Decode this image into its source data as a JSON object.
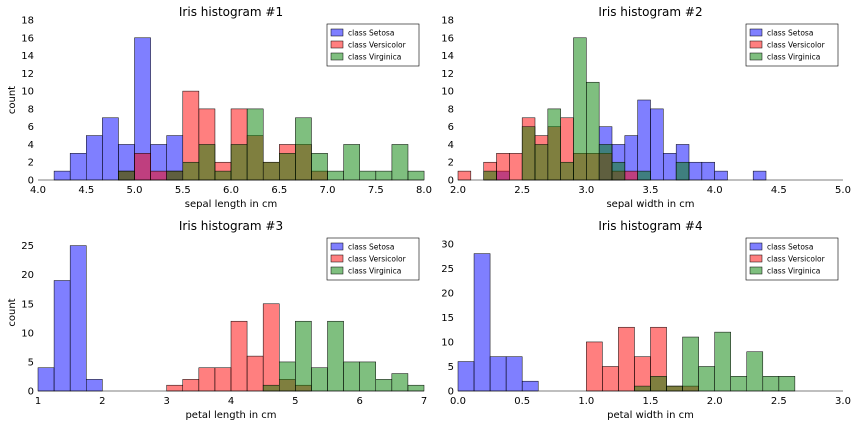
{
  "legend": {
    "entries": [
      "class Setosa",
      "class Versicolor",
      "class Virginica"
    ],
    "colors": [
      "#0000ff",
      "#ff0000",
      "#008000"
    ],
    "alpha": 0.5
  },
  "chart_data": [
    {
      "type": "histogram",
      "title": "Iris histogram #1",
      "xlabel": "sepal length in cm",
      "ylabel": "count",
      "xlim": [
        4.0,
        8.0
      ],
      "ylim": [
        0,
        18
      ],
      "xticks": [
        "4.0",
        "4.5",
        "5.0",
        "5.5",
        "6.0",
        "6.5",
        "7.0",
        "7.5",
        "8.0"
      ],
      "yticks": [
        "0",
        "2",
        "4",
        "6",
        "8",
        "10",
        "12",
        "14",
        "16",
        "18"
      ],
      "legend_position": "top-right",
      "grid": false,
      "bin_start": 4.0,
      "bin_width": 0.1667,
      "series": [
        {
          "name": "class Setosa",
          "values": [
            0,
            1,
            3,
            5,
            7,
            4,
            16,
            4,
            5,
            0,
            0,
            0,
            0,
            0,
            0,
            0,
            0,
            0,
            0,
            0,
            0,
            0,
            0,
            0
          ]
        },
        {
          "name": "class Versicolor",
          "values": [
            0,
            0,
            0,
            0,
            0,
            1,
            3,
            1,
            1,
            10,
            8,
            2,
            8,
            5,
            2,
            4,
            4,
            1,
            0,
            0,
            0,
            0,
            0,
            0
          ]
        },
        {
          "name": "class Virginica",
          "values": [
            0,
            0,
            0,
            0,
            0,
            1,
            0,
            0,
            1,
            2,
            4,
            1,
            4,
            8,
            2,
            3,
            7,
            3,
            1,
            4,
            1,
            1,
            4,
            1
          ]
        }
      ]
    },
    {
      "type": "histogram",
      "title": "Iris histogram #2",
      "xlabel": "sepal width in cm",
      "ylabel": "",
      "xlim": [
        2.0,
        5.0
      ],
      "ylim": [
        0,
        18
      ],
      "xticks": [
        "2.0",
        "2.5",
        "3.0",
        "3.5",
        "4.0",
        "4.5",
        "5.0"
      ],
      "yticks": [
        "0",
        "2",
        "4",
        "6",
        "8",
        "10",
        "12",
        "14",
        "16",
        "18"
      ],
      "legend_position": "top-right",
      "grid": false,
      "bin_start": 2.0,
      "bin_width": 0.1,
      "series": [
        {
          "name": "class Setosa",
          "values": [
            0,
            0,
            0,
            1,
            0,
            0,
            0,
            0,
            0,
            0,
            0,
            6,
            4,
            5,
            9,
            8,
            3,
            4,
            2,
            2,
            1,
            0,
            0,
            1,
            0,
            0,
            0,
            0,
            0,
            0
          ]
        },
        {
          "name": "class Versicolor",
          "values": [
            1,
            0,
            2,
            3,
            3,
            7,
            5,
            6,
            7,
            3,
            3,
            3,
            1,
            1,
            0,
            0,
            0,
            0,
            0,
            0,
            0,
            0,
            0,
            0,
            0,
            0,
            0,
            0,
            0,
            0
          ]
        },
        {
          "name": "class Virginica",
          "values": [
            0,
            0,
            1,
            0,
            0,
            6,
            4,
            8,
            2,
            16,
            11,
            4,
            2,
            0,
            1,
            0,
            0,
            2,
            0,
            0,
            0,
            0,
            0,
            0,
            0,
            0,
            0,
            0,
            0,
            0
          ]
        }
      ]
    },
    {
      "type": "histogram",
      "title": "Iris histogram #3",
      "xlabel": "petal length in cm",
      "ylabel": "count",
      "xlim": [
        1,
        7
      ],
      "ylim": [
        0,
        27
      ],
      "xticks": [
        "1",
        "2",
        "3",
        "4",
        "5",
        "6",
        "7"
      ],
      "yticks": [
        "0",
        "5",
        "10",
        "15",
        "20",
        "25"
      ],
      "legend_position": "top-right",
      "grid": false,
      "bin_start": 1.0,
      "bin_width": 0.25,
      "series": [
        {
          "name": "class Setosa",
          "values": [
            4,
            19,
            25,
            2,
            0,
            0,
            0,
            0,
            0,
            0,
            0,
            0,
            0,
            0,
            0,
            0,
            0,
            0,
            0,
            0,
            0,
            0,
            0,
            0
          ]
        },
        {
          "name": "class Versicolor",
          "values": [
            0,
            0,
            0,
            0,
            0,
            0,
            0,
            0,
            1,
            2,
            4,
            4,
            12,
            6,
            15,
            2,
            1,
            0,
            0,
            0,
            0,
            0,
            0,
            0
          ]
        },
        {
          "name": "class Virginica",
          "values": [
            0,
            0,
            0,
            0,
            0,
            0,
            0,
            0,
            0,
            0,
            0,
            0,
            0,
            0,
            1,
            5,
            12,
            4,
            12,
            5,
            5,
            2,
            3,
            1
          ]
        }
      ]
    },
    {
      "type": "histogram",
      "title": "Iris histogram #4",
      "xlabel": "petal width in cm",
      "ylabel": "",
      "xlim": [
        0.0,
        3.0
      ],
      "ylim": [
        0,
        32
      ],
      "xticks": [
        "0.0",
        "0.5",
        "1.0",
        "1.5",
        "2.0",
        "2.5",
        "3.0"
      ],
      "yticks": [
        "0",
        "5",
        "10",
        "15",
        "20",
        "25",
        "30"
      ],
      "legend_position": "top-right",
      "grid": false,
      "bin_start": 0.0,
      "bin_width": 0.125,
      "series": [
        {
          "name": "class Setosa",
          "values": [
            6,
            28,
            7,
            7,
            2,
            0,
            0,
            0,
            0,
            0,
            0,
            0,
            0,
            0,
            0,
            0,
            0,
            0,
            0,
            0,
            0,
            0,
            0,
            0
          ]
        },
        {
          "name": "class Versicolor",
          "values": [
            0,
            0,
            0,
            0,
            0,
            0,
            0,
            0,
            10,
            5,
            13,
            7,
            13,
            1,
            1,
            0,
            0,
            0,
            0,
            0,
            0,
            0,
            0,
            0
          ]
        },
        {
          "name": "class Virginica",
          "values": [
            0,
            0,
            0,
            0,
            0,
            0,
            0,
            0,
            0,
            0,
            0,
            1,
            3,
            1,
            11,
            5,
            12,
            3,
            8,
            3,
            3,
            0,
            0,
            0
          ]
        }
      ]
    }
  ]
}
